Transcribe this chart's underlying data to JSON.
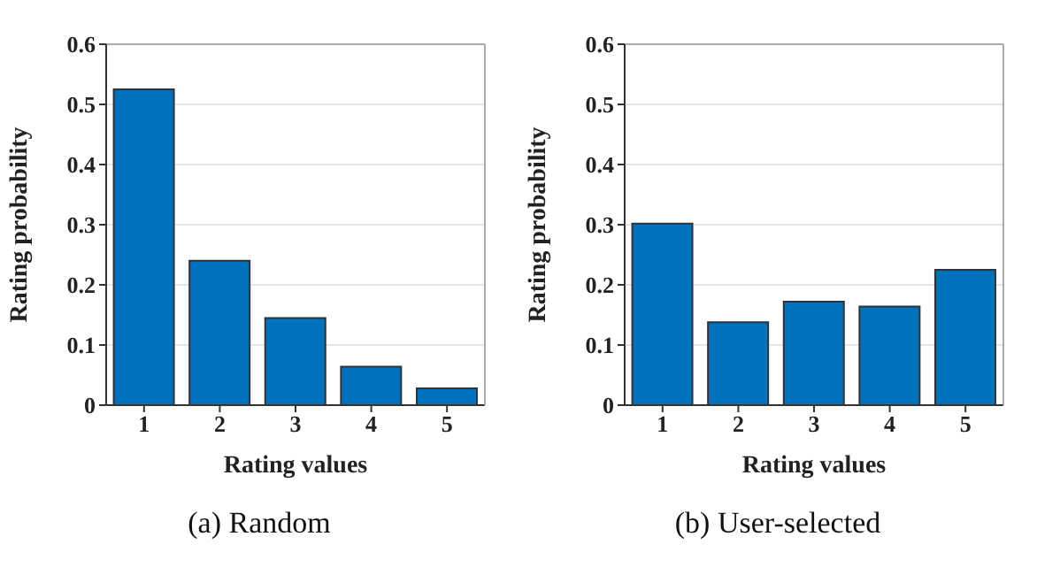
{
  "chart_data": [
    {
      "type": "bar",
      "title": "(a)  Random",
      "xlabel": "Rating values",
      "ylabel": "Rating probability",
      "categories": [
        "1",
        "2",
        "3",
        "4",
        "5"
      ],
      "values": [
        0.525,
        0.24,
        0.145,
        0.064,
        0.028
      ],
      "color": "#0072bd",
      "ylim": [
        0,
        0.6
      ],
      "yticks": [
        0,
        0.1,
        0.2,
        0.3,
        0.4,
        0.5,
        0.6
      ],
      "grid": "y"
    },
    {
      "type": "bar",
      "title": "(b)  User-selected",
      "xlabel": "Rating values",
      "ylabel": "Rating probability",
      "categories": [
        "1",
        "2",
        "3",
        "4",
        "5"
      ],
      "values": [
        0.302,
        0.138,
        0.172,
        0.164,
        0.225
      ],
      "color": "#0072bd",
      "ylim": [
        0,
        0.6
      ],
      "yticks": [
        0,
        0.1,
        0.2,
        0.3,
        0.4,
        0.5,
        0.6
      ],
      "grid": "y"
    }
  ]
}
